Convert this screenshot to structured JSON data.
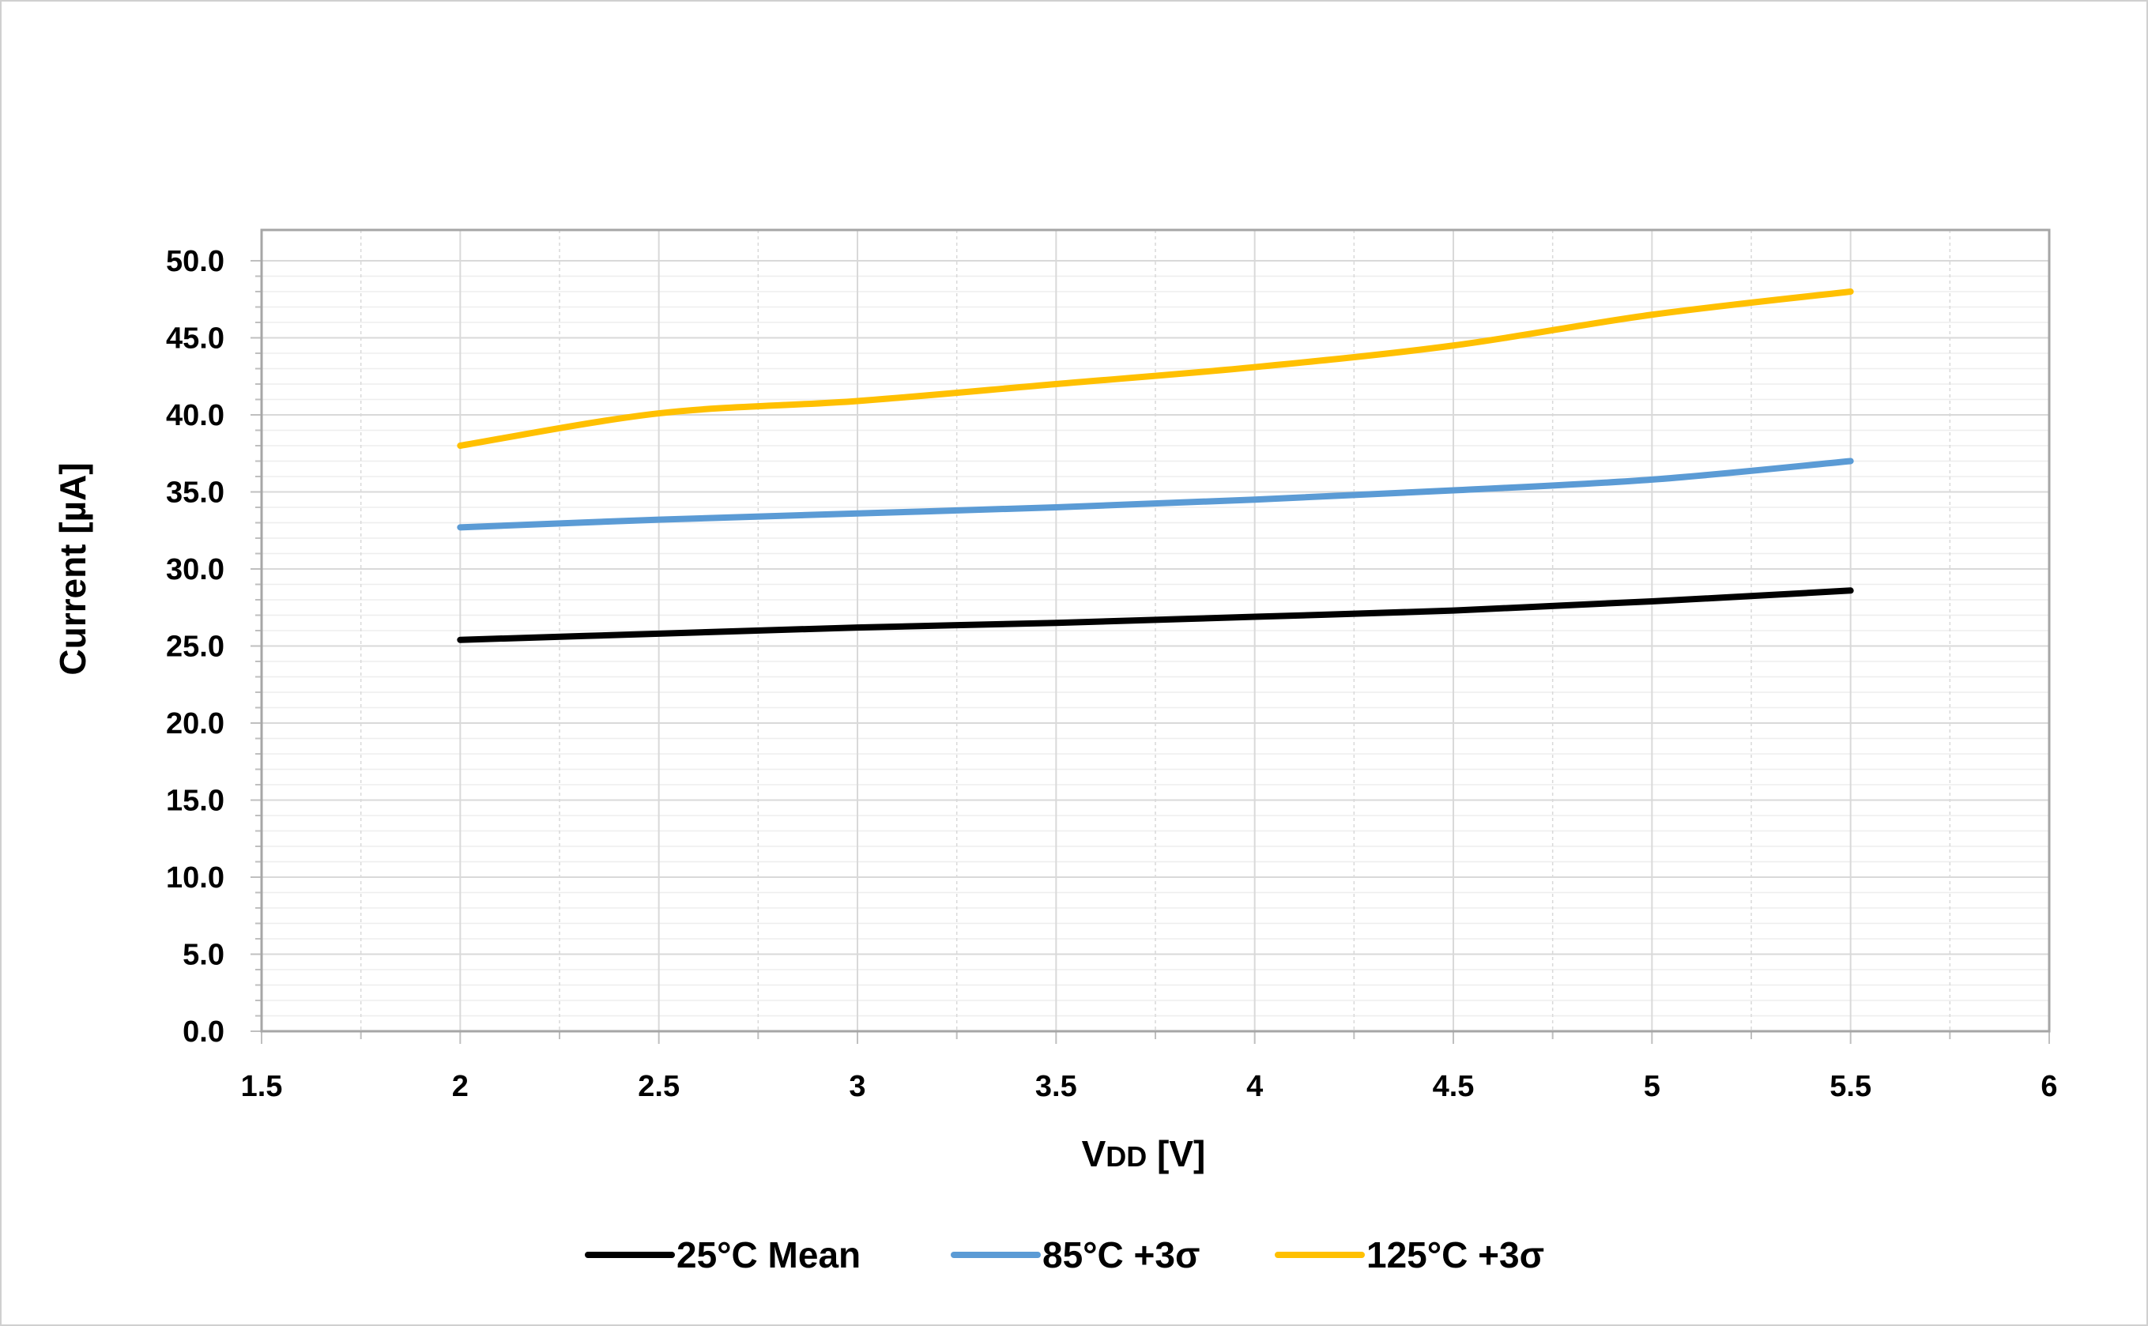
{
  "chart_data": {
    "type": "line",
    "xlabel": "VDD [V]",
    "xlabel_main": "V",
    "xlabel_sub": "DD",
    "xlabel_unit": " [V]",
    "ylabel": "Current [µA]",
    "xlim": [
      1.5,
      6
    ],
    "ylim": [
      0,
      50
    ],
    "x_ticks": [
      "1.5",
      "2",
      "2.5",
      "3",
      "3.5",
      "4",
      "4.5",
      "5",
      "5.5",
      "6"
    ],
    "y_ticks": [
      "0.0",
      "5.0",
      "10.0",
      "15.0",
      "20.0",
      "25.0",
      "30.0",
      "35.0",
      "40.0",
      "45.0",
      "50.0"
    ],
    "x": [
      2,
      2.5,
      3,
      3.5,
      4,
      4.5,
      5,
      5.5
    ],
    "grid": true,
    "legend_position": "bottom",
    "series": [
      {
        "name": "25°C Mean",
        "color": "#000000",
        "values": [
          25.4,
          25.8,
          26.2,
          26.5,
          26.9,
          27.3,
          27.9,
          28.6
        ]
      },
      {
        "name": "85°C +3σ",
        "color": "#5b9bd5",
        "values": [
          32.7,
          33.2,
          33.6,
          34.0,
          34.5,
          35.1,
          35.8,
          37.0
        ]
      },
      {
        "name": "125°C +3σ",
        "color": "#ffc000",
        "values": [
          38.0,
          40.1,
          40.9,
          42.0,
          43.1,
          44.5,
          46.5,
          48.0
        ]
      }
    ]
  }
}
